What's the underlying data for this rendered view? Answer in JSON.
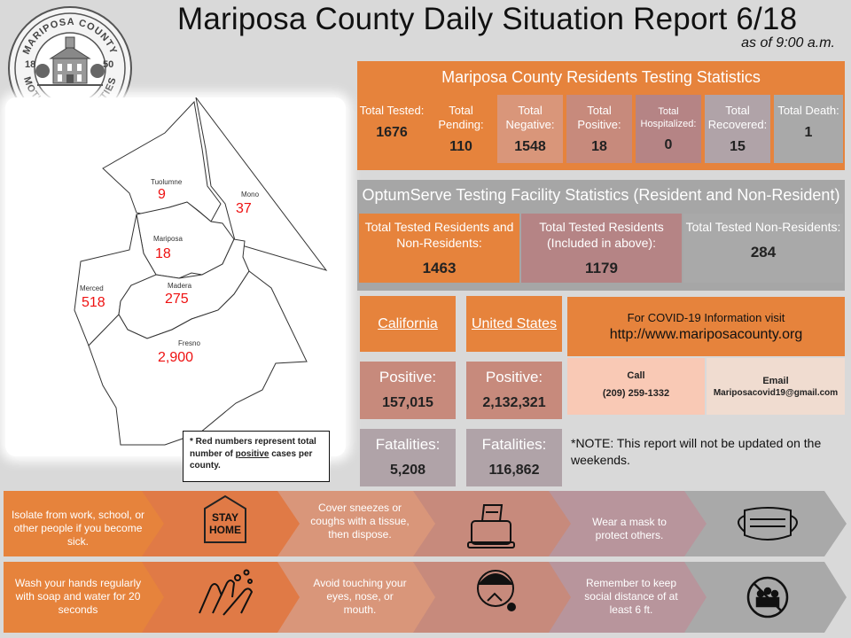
{
  "header": {
    "title": "Mariposa County Daily Situation Report 6/18",
    "as_of": "as of 9:00 a.m."
  },
  "seal": {
    "top_text": "MARIPOSA COUNTY",
    "bottom_text": "MOTHER OF COUNTIES",
    "year_left": "18",
    "year_right": "50"
  },
  "map": {
    "counties": [
      {
        "name": "Tuolumne",
        "count": "9"
      },
      {
        "name": "Mono",
        "count": "37"
      },
      {
        "name": "Mariposa",
        "count": "18"
      },
      {
        "name": "Merced",
        "count": "518"
      },
      {
        "name": "Madera",
        "count": "275"
      },
      {
        "name": "Fresno",
        "count": "2,900"
      }
    ],
    "note_prefix": "* Red numbers represent total number of ",
    "note_emph": "positive",
    "note_suffix": " cases per county."
  },
  "residents": {
    "title": "Mariposa County Residents Testing Statistics",
    "stats": [
      {
        "label": "Total Tested:",
        "value": "1676"
      },
      {
        "label": "Total Pending:",
        "value": "110"
      },
      {
        "label": "Total Negative:",
        "value": "1548"
      },
      {
        "label": "Total Positive:",
        "value": "18"
      },
      {
        "label": "Total Hospitalized:",
        "value": "0"
      },
      {
        "label": "Total Recovered:",
        "value": "15"
      },
      {
        "label": "Total Death:",
        "value": "1"
      }
    ]
  },
  "optumserve": {
    "title": "OptumServe Testing Facility Statistics (Resident and Non-Resident)",
    "stats": [
      {
        "label": "Total Tested Residents and Non-Residents:",
        "value": "1463"
      },
      {
        "label": "Total Tested Residents (Included in above):",
        "value": "1179"
      },
      {
        "label": "Total Tested Non-Residents:",
        "value": "284"
      }
    ]
  },
  "california": {
    "label": "California",
    "positive_label": "Positive:",
    "positive": "157,015",
    "fatalities_label": "Fatalities:",
    "fatalities": "5,208"
  },
  "us": {
    "label": "United States",
    "positive_label": "Positive:",
    "positive": "2,132,321",
    "fatalities_label": "Fatalities:",
    "fatalities": "116,862"
  },
  "info": {
    "visit_text": "For COVID-19 Information visit",
    "url": "http://www.mariposacounty.org",
    "call_label": "Call",
    "phone": "(209) 259-1332",
    "email_label": "Email",
    "email": "Mariposacovid19@gmail.com"
  },
  "update_note": "*NOTE: This report will not be updated on the weekends.",
  "tips": {
    "row1": [
      {
        "text": "Isolate from work, school, or other people if you become sick."
      },
      {
        "icon": "stay-home-icon",
        "line1": "STAY",
        "line2": "HOME"
      },
      {
        "text": "Cover sneezes or coughs with a tissue, then dispose."
      },
      {
        "icon": "tissue-box-icon"
      },
      {
        "text": "Wear a mask to protect others."
      },
      {
        "icon": "face-mask-icon"
      }
    ],
    "row2": [
      {
        "text": "Wash your hands regularly with soap and water for 20 seconds"
      },
      {
        "icon": "hand-washing-icon"
      },
      {
        "text": "Avoid touching your eyes, nose, or mouth."
      },
      {
        "icon": "no-face-touch-icon"
      },
      {
        "text": "Remember to keep social distance of at least 6 ft."
      },
      {
        "icon": "no-crowd-icon"
      }
    ]
  },
  "colors": {
    "orange": "#e6833c",
    "rose": "#c78a7c",
    "mauve": "#b58485",
    "grey": "#a9a9a9",
    "red_numbers": "#e11111"
  }
}
